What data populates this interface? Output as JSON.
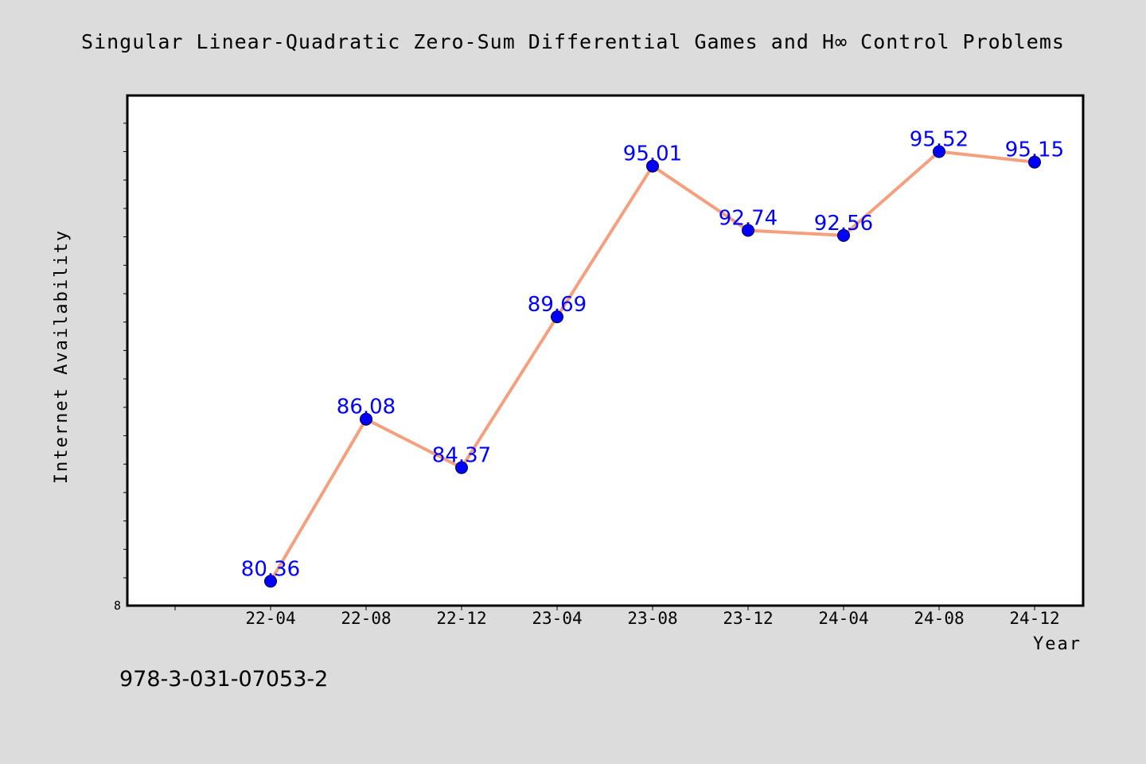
{
  "title": "Singular Linear-Quadratic Zero-Sum Differential Games and H∞ Control Problems",
  "footer": "978-3-031-07053-2",
  "colors": {
    "background": "#dcdcdc",
    "plot_background": "#ffffff",
    "line": "#f4a07f",
    "marker": "#0000ff",
    "data_label": "#0000ff"
  },
  "chart_data": {
    "type": "line",
    "title": "Singular Linear-Quadratic Zero-Sum Differential Games and H∞ Control Problems",
    "xlabel": "Year",
    "ylabel": "Internet Availability",
    "categories": [
      "22-04",
      "22-08",
      "22-12",
      "23-04",
      "23-08",
      "23-12",
      "24-04",
      "24-08",
      "24-12"
    ],
    "values": [
      80.36,
      86.08,
      84.37,
      89.69,
      95.01,
      92.74,
      92.56,
      95.52,
      95.15
    ],
    "ymin_label": "8",
    "ylim": [
      79.5,
      97.5
    ],
    "grid": false,
    "legend": "none"
  }
}
